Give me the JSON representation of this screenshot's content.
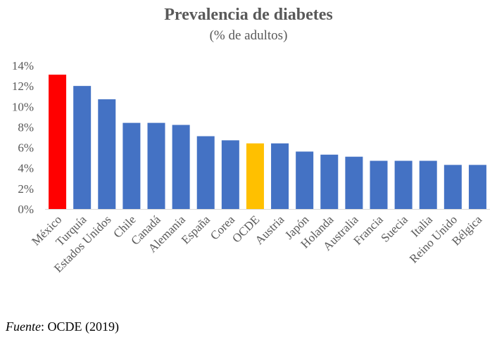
{
  "chart_data": {
    "type": "bar",
    "title": "Prevalencia de diabetes",
    "subtitle": "(% de adultos)",
    "categories": [
      "México",
      "Turquía",
      "Estados Unidos",
      "Chile",
      "Canadá",
      "Alemania",
      "España",
      "Corea",
      "OCDE",
      "Austria",
      "Japón",
      "Holanda",
      "Australia",
      "Francia",
      "Suecia",
      "Italia",
      "Reino Unido",
      "Bélgica"
    ],
    "values": [
      13.1,
      12.0,
      10.7,
      8.4,
      8.4,
      8.2,
      7.1,
      6.7,
      6.4,
      6.4,
      5.6,
      5.3,
      5.1,
      4.7,
      4.7,
      4.7,
      4.3,
      4.3
    ],
    "value_format": "percent",
    "ylim": [
      0,
      14
    ],
    "yticks": [
      0,
      2,
      4,
      6,
      8,
      10,
      12,
      14
    ],
    "ytick_labels": [
      "0%",
      "2%",
      "4%",
      "6%",
      "8%",
      "10%",
      "12%",
      "14%"
    ],
    "xlabel": "",
    "ylabel": "",
    "grid": false,
    "legend": "none",
    "colors": {
      "default": "#4472C4",
      "highlights": {
        "México": "#FF0000",
        "OCDE": "#FFC000"
      }
    }
  },
  "source": {
    "label": "Fuente",
    "text": ": OCDE (2019)"
  }
}
